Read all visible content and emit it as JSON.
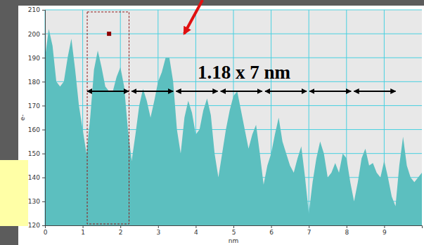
{
  "chart_data": {
    "type": "area",
    "x_label": "nm",
    "y_label": "e-",
    "color": "#5cbfbf",
    "grid": true,
    "xlim": [
      0,
      10
    ],
    "ylim": [
      120,
      210
    ],
    "xticks": [
      0,
      1,
      2,
      3,
      4,
      5,
      6,
      7,
      8,
      9
    ],
    "yticks": [
      120,
      130,
      140,
      150,
      160,
      170,
      180,
      190,
      200,
      210
    ],
    "annotations": [
      {
        "text": "1.18 x 7 nm"
      }
    ],
    "x": [
      0,
      0.1,
      0.2,
      0.3,
      0.4,
      0.5,
      0.6,
      0.7,
      0.8,
      0.9,
      1,
      1.1,
      1.2,
      1.3,
      1.4,
      1.5,
      1.6,
      1.7,
      1.8,
      1.9,
      2,
      2.1,
      2.2,
      2.3,
      2.4,
      2.5,
      2.6,
      2.7,
      2.8,
      2.9,
      3,
      3.1,
      3.2,
      3.3,
      3.4,
      3.5,
      3.6,
      3.7,
      3.8,
      3.9,
      4,
      4.1,
      4.2,
      4.3,
      4.4,
      4.5,
      4.6,
      4.7,
      4.8,
      4.9,
      5,
      5.1,
      5.2,
      5.3,
      5.4,
      5.5,
      5.6,
      5.7,
      5.8,
      5.9,
      6,
      6.1,
      6.2,
      6.3,
      6.4,
      6.5,
      6.6,
      6.7,
      6.8,
      6.9,
      7,
      7.1,
      7.2,
      7.3,
      7.4,
      7.5,
      7.6,
      7.7,
      7.8,
      7.9,
      8,
      8.1,
      8.2,
      8.3,
      8.4,
      8.5,
      8.6,
      8.7,
      8.8,
      8.9,
      9,
      9.1,
      9.2,
      9.3,
      9.4,
      9.5,
      9.6,
      9.7,
      9.8,
      9.9,
      10
    ],
    "values": [
      190,
      202,
      195,
      180,
      178,
      180,
      190,
      198,
      185,
      170,
      160,
      150,
      165,
      185,
      193,
      186,
      178,
      176,
      176,
      182,
      186,
      178,
      160,
      147,
      158,
      170,
      177,
      172,
      165,
      172,
      180,
      184,
      190,
      190,
      180,
      160,
      150,
      165,
      172,
      167,
      158,
      160,
      168,
      173,
      166,
      150,
      140,
      150,
      160,
      168,
      174,
      176,
      168,
      160,
      152,
      158,
      162,
      150,
      137,
      145,
      150,
      158,
      165,
      155,
      150,
      145,
      142,
      148,
      153,
      140,
      125,
      138,
      148,
      155,
      150,
      140,
      142,
      146,
      142,
      150,
      148,
      138,
      130,
      138,
      148,
      152,
      145,
      146,
      142,
      140,
      147,
      140,
      132,
      128,
      145,
      157,
      145,
      140,
      138,
      140,
      142
    ]
  }
}
